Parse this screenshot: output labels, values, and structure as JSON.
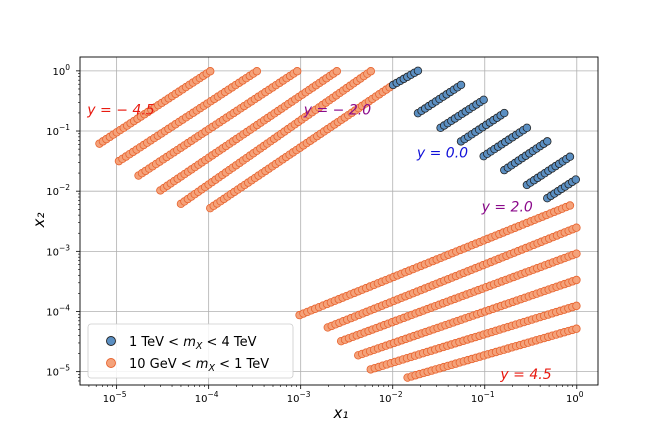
{
  "chart_data": {
    "type": "scatter",
    "xlabel": "x₁",
    "ylabel": "x₂",
    "xscale": "log",
    "yscale": "log",
    "xlim": [
      4e-06,
      1.7
    ],
    "ylim": [
      6e-06,
      1.7
    ],
    "grid": true,
    "legend_position": "lower-left",
    "x_ticks": [
      {
        "value": 1e-05,
        "base": "10",
        "exp": "−5"
      },
      {
        "value": 0.0001,
        "base": "10",
        "exp": "−4"
      },
      {
        "value": 0.001,
        "base": "10",
        "exp": "−3"
      },
      {
        "value": 0.01,
        "base": "10",
        "exp": "−2"
      },
      {
        "value": 0.1,
        "base": "10",
        "exp": "−1"
      },
      {
        "value": 1,
        "base": "10",
        "exp": "0"
      }
    ],
    "y_ticks": [
      {
        "value": 1e-05,
        "base": "10",
        "exp": "−5"
      },
      {
        "value": 0.0001,
        "base": "10",
        "exp": "−4"
      },
      {
        "value": 0.001,
        "base": "10",
        "exp": "−3"
      },
      {
        "value": 0.01,
        "base": "10",
        "exp": "−2"
      },
      {
        "value": 0.1,
        "base": "10",
        "exp": "−1"
      },
      {
        "value": 1,
        "base": "10",
        "exp": "0"
      }
    ],
    "series": [
      {
        "name": "1 TeV < m_X < 4 TeV",
        "legend_main": "1 TeV < ",
        "legend_italic": "m",
        "legend_sub": "X",
        "legend_tail": " < 4 TeV",
        "marker_color": "#5b8fc2",
        "edge_color": "#222222",
        "segments": [
          {
            "x": [
              0.0101,
              0.0188
            ],
            "y": [
              0.583,
              1.003
            ]
          },
          {
            "x": [
              0.0188,
              0.0552
            ],
            "y": [
              0.198,
              0.583
            ]
          },
          {
            "x": [
              0.0331,
              0.0973
            ],
            "y": [
              0.113,
              0.33
            ]
          },
          {
            "x": [
              0.0552,
              0.163
            ],
            "y": [
              0.0672,
              0.199
            ]
          },
          {
            "x": [
              0.0973,
              0.287
            ],
            "y": [
              0.0382,
              0.113
            ]
          },
          {
            "x": [
              0.163,
              0.478
            ],
            "y": [
              0.0224,
              0.0673
            ]
          },
          {
            "x": [
              0.287,
              0.843
            ],
            "y": [
              0.0127,
              0.0374
            ]
          },
          {
            "x": [
              0.478,
              0.975
            ],
            "y": [
              0.00764,
              0.0156
            ]
          }
        ]
      },
      {
        "name": "10 GeV < m_X < 1 TeV",
        "legend_main": "10 GeV < ",
        "legend_italic": "m",
        "legend_sub": "X",
        "legend_tail": " < 1 TeV",
        "marker_color": "#f4a27a",
        "edge_color": "#e8632e",
        "segments": [
          {
            "x": [
              6.51e-06,
              0.000104
            ],
            "y": [
              0.0617,
              0.985
            ]
          },
          {
            "x": [
              1.06e-05,
              0.000334
            ],
            "y": [
              0.0316,
              0.985
            ]
          },
          {
            "x": [
              1.73e-05,
              0.000916
            ],
            "y": [
              0.0182,
              0.985
            ]
          },
          {
            "x": [
              2.99e-05,
              0.00247
            ],
            "y": [
              0.0103,
              0.985
            ]
          },
          {
            "x": [
              5e-05,
              0.00578
            ],
            "y": [
              0.00616,
              0.985
            ]
          },
          {
            "x": [
              0.000104,
              0.0101
            ],
            "y": [
              0.00522,
              0.583
            ]
          },
          {
            "x": [
              0.000972,
              0.843
            ],
            "y": [
              8.71e-05,
              0.00578
            ]
          },
          {
            "x": [
              0.00197,
              0.991
            ],
            "y": [
              5.43e-05,
              0.00247
            ]
          },
          {
            "x": [
              0.00275,
              0.991
            ],
            "y": [
              3.21e-05,
              0.000915
            ]
          },
          {
            "x": [
              0.00422,
              0.991
            ],
            "y": [
              1.87e-05,
              0.000334
            ]
          },
          {
            "x": [
              0.00577,
              0.991
            ],
            "y": [
              1.09e-05,
              0.000124
            ]
          },
          {
            "x": [
              0.0145,
              0.991
            ],
            "y": [
              7.97e-06,
              5.17e-05
            ]
          }
        ]
      }
    ],
    "annotations": [
      {
        "label": "y = − 4.5",
        "x": 4.8e-06,
        "y": 0.23,
        "color": "#e81a10"
      },
      {
        "label": "y = − 2.0",
        "x": 0.00108,
        "y": 0.23,
        "color": "#8b0a8b"
      },
      {
        "label": "y = 0.0",
        "x": 0.0183,
        "y": 0.044,
        "color": "#1010d8"
      },
      {
        "label": "y = 2.0",
        "x": 0.0925,
        "y": 0.0056,
        "color": "#8b0a8b"
      },
      {
        "label": "y = 4.5",
        "x": 0.148,
        "y": 9.1e-06,
        "color": "#e81a10"
      }
    ]
  }
}
